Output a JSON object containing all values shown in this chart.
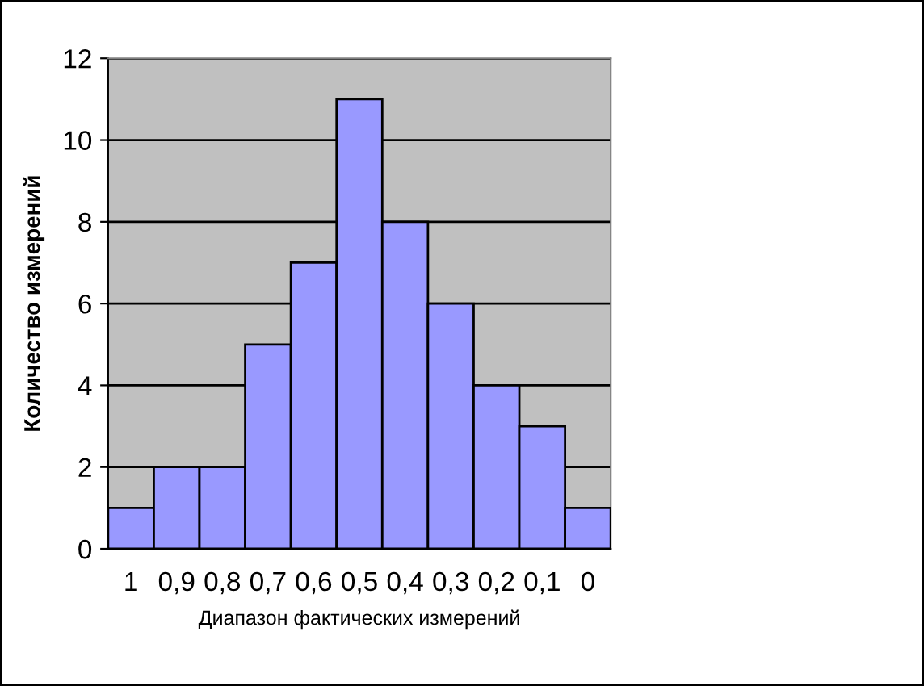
{
  "chart_data": {
    "type": "bar",
    "categories": [
      "1",
      "0,9",
      "0,8",
      "0,7",
      "0,6",
      "0,5",
      "0,4",
      "0,3",
      "0,2",
      "0,1",
      "0"
    ],
    "values": [
      1,
      2,
      2,
      5,
      7,
      11,
      8,
      6,
      4,
      3,
      1
    ],
    "color": "#9999ff",
    "xlabel": "Диапазон фактических измерений",
    "ylabel": "Количество измерений",
    "ylim": [
      0,
      12
    ],
    "yticks": [
      0,
      2,
      4,
      6,
      8,
      10,
      12
    ],
    "grid": "y"
  }
}
